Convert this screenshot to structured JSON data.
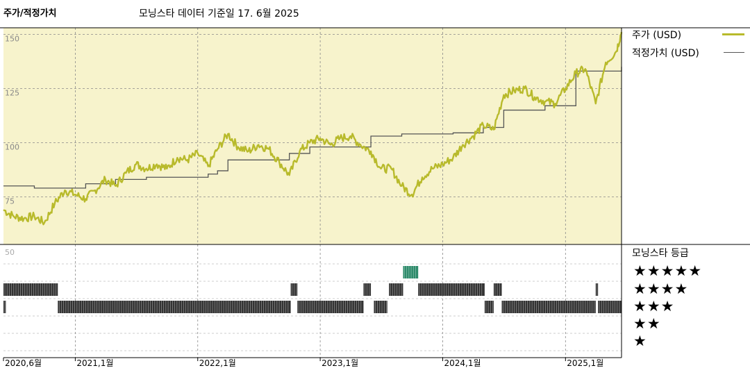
{
  "header": {
    "title": "주가/적정가치",
    "subtitle": "모닝스타 데이터 기준일 17. 6월 2025"
  },
  "legend": {
    "price_label": "주가 (USD)",
    "fair_value_label": "적정가치 (USD)",
    "rating_label": "모닝스타 등급",
    "star_rows": [
      "★★★★★",
      "★★★★",
      "★★★",
      "★★",
      "★"
    ]
  },
  "colors": {
    "price_line": "#b8ba2b",
    "fair_value_line": "#555555",
    "panel_bg": "#f7f3cc",
    "rating_bar": "#333333",
    "rating_5star": "#2e8b6b"
  },
  "chart_data": {
    "type": "line",
    "x_axis": {
      "start": "2020-06",
      "end": "2025-06",
      "tick_labels": [
        "2020,6월",
        "2021,1월",
        "2022,1월",
        "2023,1월",
        "2024,1월",
        "2025,1월"
      ],
      "tick_dates": [
        "2020-06",
        "2021-01",
        "2022-01",
        "2023-01",
        "2024-01",
        "2025-01"
      ]
    },
    "y_axis": {
      "ylim": [
        53,
        153
      ],
      "tick_labels": [
        "150",
        "125",
        "100",
        "75"
      ],
      "tick_values": [
        150,
        125,
        100,
        75
      ]
    },
    "series": [
      {
        "name": "주가 (USD)",
        "points": [
          [
            "2020-06-01",
            69
          ],
          [
            "2020-07-01",
            66
          ],
          [
            "2020-08-01",
            65
          ],
          [
            "2020-09-01",
            66
          ],
          [
            "2020-10-01",
            63
          ],
          [
            "2020-11-01",
            72
          ],
          [
            "2020-12-01",
            78
          ],
          [
            "2021-01-01",
            76
          ],
          [
            "2021-02-01",
            74
          ],
          [
            "2021-03-01",
            78
          ],
          [
            "2021-04-01",
            83
          ],
          [
            "2021-05-01",
            80
          ],
          [
            "2021-06-01",
            86
          ],
          [
            "2021-07-01",
            90
          ],
          [
            "2021-08-01",
            88
          ],
          [
            "2021-09-01",
            90
          ],
          [
            "2021-10-01",
            88
          ],
          [
            "2021-11-01",
            93
          ],
          [
            "2021-12-01",
            92
          ],
          [
            "2022-01-01",
            95
          ],
          [
            "2022-02-01",
            89
          ],
          [
            "2022-03-01",
            97
          ],
          [
            "2022-04-01",
            104
          ],
          [
            "2022-05-01",
            98
          ],
          [
            "2022-06-01",
            96
          ],
          [
            "2022-07-01",
            99
          ],
          [
            "2022-08-01",
            97
          ],
          [
            "2022-09-01",
            91
          ],
          [
            "2022-10-01",
            85
          ],
          [
            "2022-11-01",
            96
          ],
          [
            "2022-12-01",
            100
          ],
          [
            "2023-01-01",
            102
          ],
          [
            "2023-02-01",
            99
          ],
          [
            "2023-03-01",
            102
          ],
          [
            "2023-04-01",
            103
          ],
          [
            "2023-05-01",
            99
          ],
          [
            "2023-06-01",
            96
          ],
          [
            "2023-07-01",
            88
          ],
          [
            "2023-08-01",
            88
          ],
          [
            "2023-09-01",
            80
          ],
          [
            "2023-10-01",
            76
          ],
          [
            "2023-11-01",
            84
          ],
          [
            "2023-12-01",
            88
          ],
          [
            "2024-01-01",
            90
          ],
          [
            "2024-02-01",
            93
          ],
          [
            "2024-03-01",
            99
          ],
          [
            "2024-04-01",
            103
          ],
          [
            "2024-05-01",
            108
          ],
          [
            "2024-06-01",
            106
          ],
          [
            "2024-07-01",
            122
          ],
          [
            "2024-08-01",
            124
          ],
          [
            "2024-09-01",
            125
          ],
          [
            "2024-10-01",
            121
          ],
          [
            "2024-11-01",
            119
          ],
          [
            "2024-12-01",
            118
          ],
          [
            "2025-01-01",
            125
          ],
          [
            "2025-02-01",
            132
          ],
          [
            "2025-03-01",
            134
          ],
          [
            "2025-04-01",
            118
          ],
          [
            "2025-05-01",
            137
          ],
          [
            "2025-06-01",
            142
          ],
          [
            "2025-06-17",
            151
          ]
        ]
      },
      {
        "name": "적정가치 (USD)",
        "step": true,
        "points": [
          [
            "2020-06-01",
            80
          ],
          [
            "2020-09-01",
            79
          ],
          [
            "2021-02-01",
            81
          ],
          [
            "2021-05-01",
            83
          ],
          [
            "2021-08-01",
            84
          ],
          [
            "2022-02-01",
            85.5
          ],
          [
            "2022-03-01",
            87
          ],
          [
            "2022-04-01",
            92
          ],
          [
            "2022-10-01",
            95
          ],
          [
            "2022-12-01",
            98
          ],
          [
            "2023-06-01",
            103
          ],
          [
            "2023-09-01",
            104
          ],
          [
            "2024-02-01",
            104.5
          ],
          [
            "2024-05-01",
            107
          ],
          [
            "2024-07-01",
            115
          ],
          [
            "2024-11-01",
            117
          ],
          [
            "2025-02-01",
            133
          ],
          [
            "2025-06-17",
            135
          ]
        ]
      }
    ],
    "rating_history": {
      "label": "모닝스타 등급",
      "scale_label": "50",
      "segments": [
        {
          "start": "2020-06-01",
          "end": "2020-11-10",
          "stars": 4
        },
        {
          "start": "2020-06-01",
          "end": "2020-06-08",
          "stars": 3
        },
        {
          "start": "2020-11-10",
          "end": "2022-10-05",
          "stars": 3
        },
        {
          "start": "2022-10-05",
          "end": "2022-10-25",
          "stars": 4
        },
        {
          "start": "2022-10-25",
          "end": "2023-05-10",
          "stars": 3
        },
        {
          "start": "2023-05-10",
          "end": "2023-06-01",
          "stars": 4
        },
        {
          "start": "2023-06-10",
          "end": "2023-07-20",
          "stars": 3
        },
        {
          "start": "2023-07-25",
          "end": "2023-09-05",
          "stars": 4
        },
        {
          "start": "2023-09-05",
          "end": "2023-10-20",
          "stars": 5
        },
        {
          "start": "2023-10-20",
          "end": "2024-05-05",
          "stars": 4
        },
        {
          "start": "2024-05-05",
          "end": "2024-06-01",
          "stars": 3
        },
        {
          "start": "2024-06-01",
          "end": "2024-06-25",
          "stars": 4
        },
        {
          "start": "2024-06-25",
          "end": "2025-04-01",
          "stars": 3
        },
        {
          "start": "2025-04-01",
          "end": "2025-04-08",
          "stars": 4
        },
        {
          "start": "2025-04-08",
          "end": "2025-06-17",
          "stars": 3
        }
      ]
    }
  }
}
